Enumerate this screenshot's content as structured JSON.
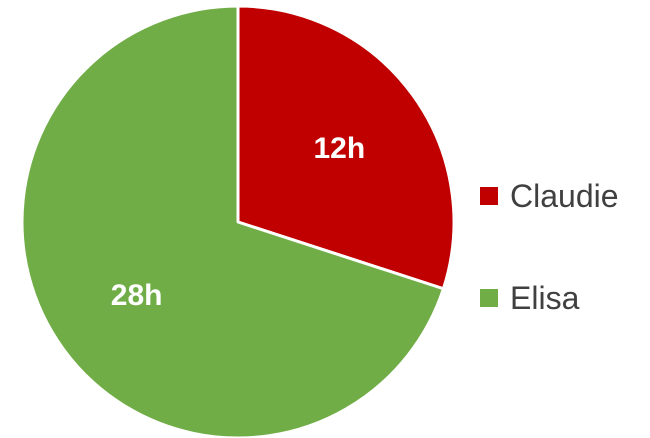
{
  "chart_data": {
    "type": "pie",
    "categories": [
      "Claudie",
      "Elisa"
    ],
    "values": [
      12,
      28
    ],
    "labels": [
      "12h",
      "28h"
    ],
    "colors": [
      "#c00000",
      "#70ad47"
    ],
    "legend_position": "right",
    "start_angle": "12 o'clock",
    "direction": "clockwise"
  }
}
